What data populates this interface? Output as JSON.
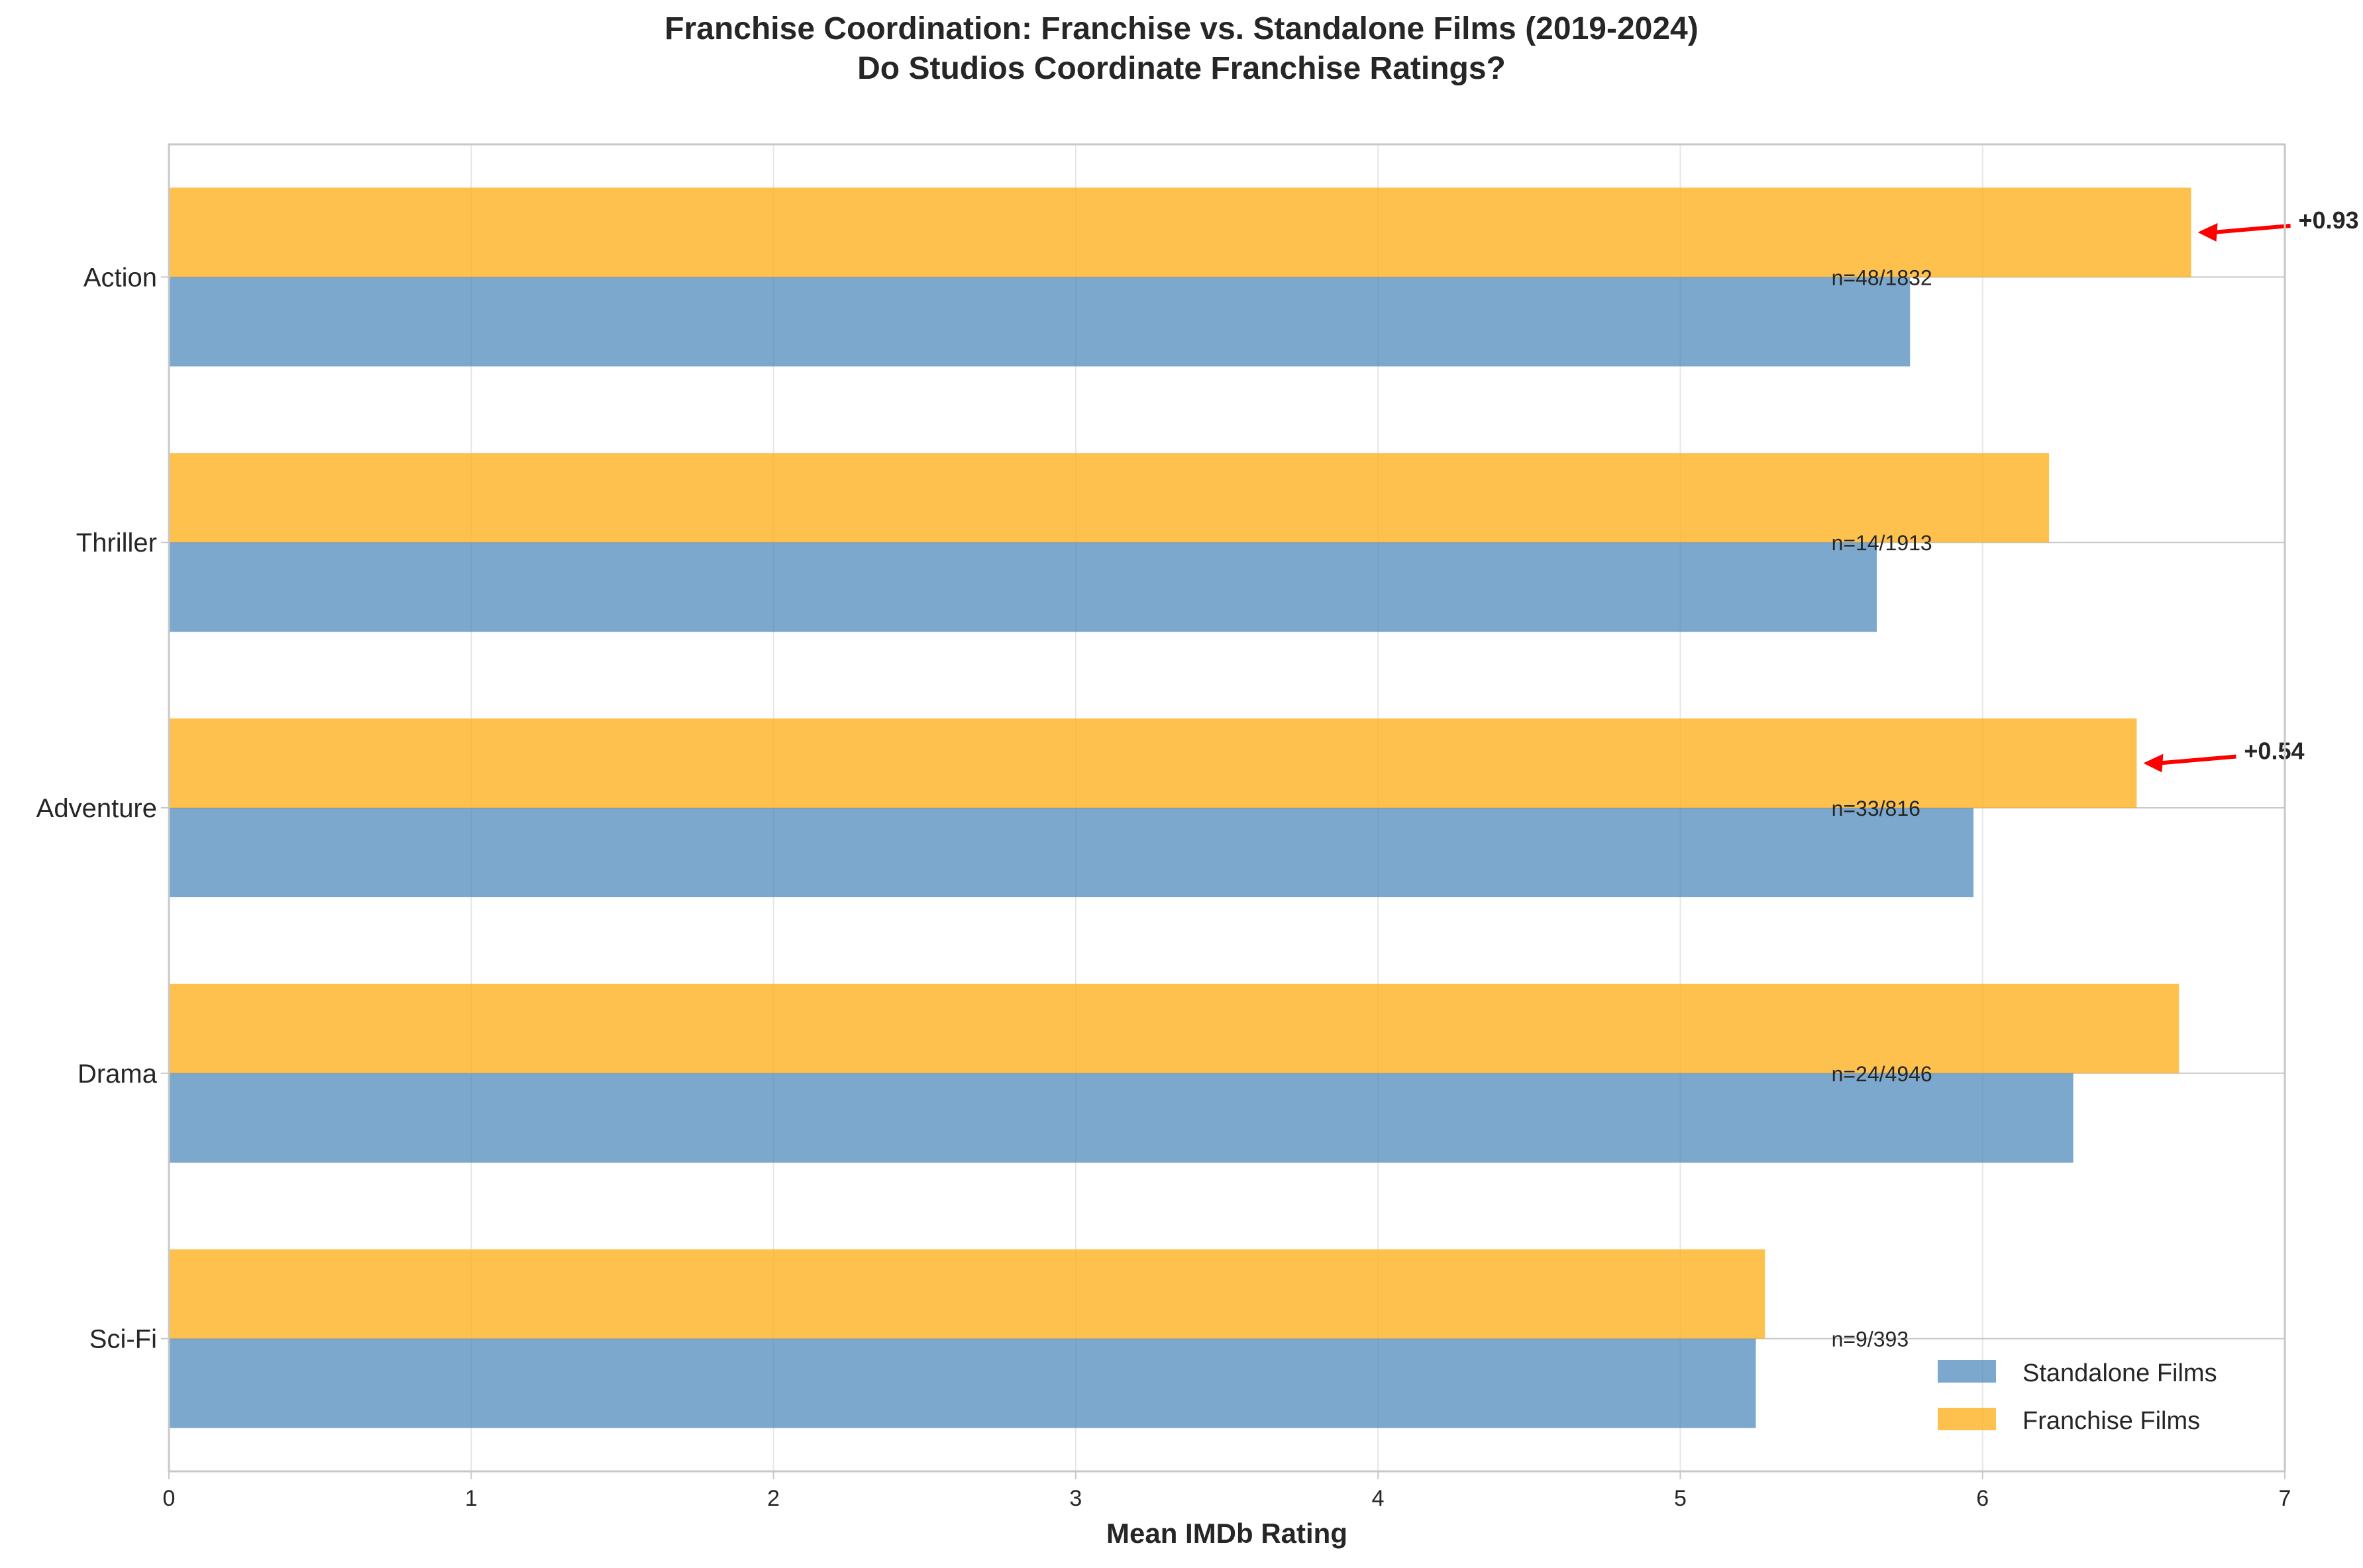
{
  "chart_data": {
    "type": "bar",
    "orientation": "horizontal",
    "title": "Franchise Coordination: Franchise vs. Standalone Films (2019-2024)",
    "subtitle": "Do Studios Coordinate Franchise Ratings?",
    "xlabel": "Mean IMDb Rating",
    "ylabel": "",
    "xlim": [
      0,
      7
    ],
    "xticks": [
      0,
      1,
      2,
      3,
      4,
      5,
      6,
      7
    ],
    "grid": true,
    "legend_position": "bottom-right",
    "categories": [
      "Action",
      "Thriller",
      "Adventure",
      "Drama",
      "Sci-Fi"
    ],
    "series": [
      {
        "name": "Standalone Films",
        "color": "#4a86bb",
        "values": [
          5.76,
          5.65,
          5.97,
          6.3,
          5.25
        ]
      },
      {
        "name": "Franchise Films",
        "color": "#ffb122",
        "values": [
          6.69,
          6.22,
          6.51,
          6.65,
          5.28
        ]
      }
    ],
    "sample_labels": [
      "n=48/1832",
      "n=14/1913",
      "n=33/816",
      "n=24/4946",
      "n=9/393"
    ],
    "annotations": [
      {
        "category": "Action",
        "text": "+0.93",
        "color": "#ff0000"
      },
      {
        "category": "Adventure",
        "text": "+0.54",
        "color": "#ff0000"
      }
    ]
  }
}
